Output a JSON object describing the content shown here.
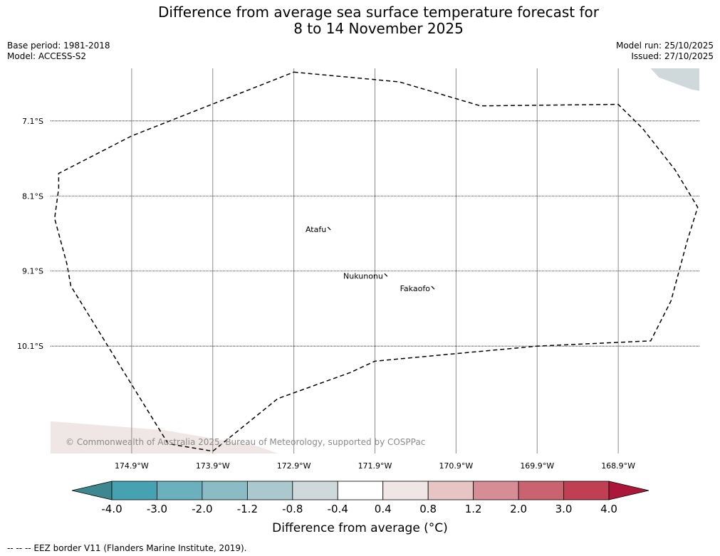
{
  "title_line1": "Difference from average sea surface temperature forecast for",
  "title_line2": "8 to 14 November 2025",
  "base_period": "Base period: 1981-2018",
  "model": "Model: ACCESS-S2",
  "model_run": "Model run: 25/10/2025",
  "issued": "Issued: 27/10/2025",
  "credit": "© Commonwealth of Australia 2025, Bureau of Meteorology, supported by COSPPac",
  "legend_note": "--  --  -- EEZ border V11 (Flanders Marine Institute, 2019).",
  "chart_data": {
    "type": "heatmap",
    "map_extent": {
      "lon": [
        -175.9,
        -167.9
      ],
      "lat": [
        -11.53,
        -6.4
      ]
    },
    "lat_ticks": [
      {
        "value": -7.1,
        "label": "7.1°S"
      },
      {
        "value": -8.1,
        "label": "8.1°S"
      },
      {
        "value": -9.1,
        "label": "9.1°S"
      },
      {
        "value": -10.1,
        "label": "10.1°S"
      }
    ],
    "lon_ticks": [
      {
        "value": -174.9,
        "label": "174.9°W"
      },
      {
        "value": -173.9,
        "label": "173.9°W"
      },
      {
        "value": -172.9,
        "label": "172.9°W"
      },
      {
        "value": -171.9,
        "label": "171.9°W"
      },
      {
        "value": -170.9,
        "label": "170.9°W"
      },
      {
        "value": -169.9,
        "label": "169.9°W"
      },
      {
        "value": -168.9,
        "label": "168.9°W"
      }
    ],
    "places": [
      {
        "name": "Atafu",
        "lon": -172.5,
        "lat": -8.58
      },
      {
        "name": "Nukunonu",
        "lon": -171.8,
        "lat": -9.2
      },
      {
        "name": "Fakaofo",
        "lon": -171.22,
        "lat": -9.37
      }
    ],
    "eez_border": [
      [
        -172.9,
        -6.45
      ],
      [
        -171.6,
        -6.58
      ],
      [
        -170.6,
        -6.9
      ],
      [
        -168.9,
        -6.88
      ],
      [
        -168.6,
        -7.2
      ],
      [
        -168.2,
        -7.75
      ],
      [
        -167.92,
        -8.25
      ],
      [
        -168.05,
        -8.7
      ],
      [
        -168.25,
        -9.5
      ],
      [
        -168.5,
        -10.03
      ],
      [
        -169.9,
        -10.1
      ],
      [
        -170.9,
        -10.2
      ],
      [
        -171.9,
        -10.3
      ],
      [
        -172.2,
        -10.45
      ],
      [
        -173.1,
        -10.8
      ],
      [
        -173.9,
        -11.5
      ],
      [
        -174.45,
        -11.4
      ],
      [
        -175.65,
        -9.3
      ],
      [
        -175.7,
        -9.0
      ],
      [
        -175.85,
        -8.4
      ],
      [
        -175.8,
        -8.0
      ],
      [
        -175.8,
        -7.8
      ],
      [
        -174.9,
        -7.3
      ]
    ],
    "anomaly_patches": [
      {
        "value": -0.6,
        "polygon": [
          [
            -168.5,
            -6.4
          ],
          [
            -167.9,
            -6.4
          ],
          [
            -167.9,
            -6.7
          ],
          [
            -168.0,
            -6.68
          ],
          [
            -168.4,
            -6.52
          ]
        ]
      },
      {
        "value": 0.5,
        "polygon": [
          [
            -175.9,
            -11.1
          ],
          [
            -174.5,
            -11.22
          ],
          [
            -173.35,
            -11.43
          ],
          [
            -173.1,
            -11.53
          ],
          [
            -175.9,
            -11.53
          ]
        ]
      }
    ],
    "colorbar": {
      "label": "Difference from average (°C)",
      "boundaries": [
        -4.0,
        -3.0,
        -2.0,
        -1.2,
        -0.8,
        -0.4,
        0.4,
        0.8,
        1.2,
        2.0,
        3.0,
        4.0
      ],
      "tick_labels": [
        "-4.0",
        "-3.0",
        "-2.0",
        "-1.2",
        "-0.8",
        "-0.4",
        "0.4",
        "0.8",
        "1.2",
        "2.0",
        "3.0",
        "4.0"
      ],
      "colors": [
        "#46a2b1",
        "#6bb0bd",
        "#8bbcc5",
        "#aac8cd",
        "#cfd8da",
        "#ffffff",
        "#f1e6e6",
        "#e7c5c4",
        "#d68d95",
        "#c9636f",
        "#c03f52"
      ],
      "under_color": "#3d8790",
      "over_color": "#ab1739"
    }
  }
}
